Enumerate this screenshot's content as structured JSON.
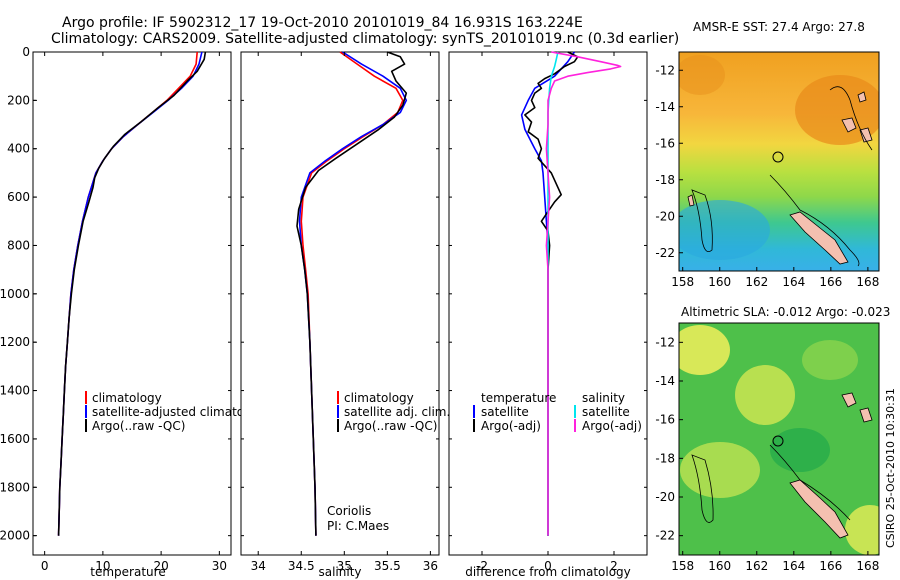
{
  "title_line1": "Argo profile: IF 5902312_17 19-Oct-2010 20101019_84 16.931S 163.224E",
  "title_line2": "Climatology: CARS2009. Satellite-adjusted climatology: synTS_20101019.nc (0.3d earlier)",
  "side_stamp": "CSIRO 25-Oct-2010 10:30:31",
  "colors": {
    "red": "#ff0000",
    "blue": "#0000ff",
    "black": "#000000",
    "cyan": "#00e5ee",
    "magenta": "#ff22dd"
  },
  "credits": {
    "line1": "Coriolis",
    "line2": "PI: C.Maes"
  },
  "chart_data": [
    {
      "type": "line",
      "name": "temperature-profile",
      "xlabel": "temperature",
      "ylabel": "",
      "xlim": [
        -2,
        32
      ],
      "ylim": [
        2080,
        0
      ],
      "xticks": [
        0,
        10,
        20,
        30
      ],
      "yticks": [
        0,
        200,
        400,
        600,
        800,
        1000,
        1200,
        1400,
        1600,
        1800,
        2000
      ],
      "legend_entries": [
        "climatology",
        "satellite-adjusted climatology",
        "Argo(..raw -QC)"
      ],
      "series": [
        {
          "name": "climatology",
          "color": "red",
          "points": [
            [
              26.2,
              0
            ],
            [
              26.0,
              50
            ],
            [
              25.0,
              100
            ],
            [
              23.0,
              150
            ],
            [
              21.0,
              200
            ],
            [
              18.5,
              250
            ],
            [
              16.0,
              300
            ],
            [
              13.5,
              350
            ],
            [
              11.5,
              400
            ],
            [
              10.0,
              450
            ],
            [
              8.8,
              500
            ],
            [
              7.5,
              600
            ],
            [
              6.5,
              700
            ],
            [
              5.7,
              800
            ],
            [
              5.0,
              900
            ],
            [
              4.5,
              1000
            ],
            [
              4.2,
              1100
            ],
            [
              3.9,
              1200
            ],
            [
              3.6,
              1300
            ],
            [
              3.4,
              1400
            ],
            [
              3.2,
              1500
            ],
            [
              3.0,
              1600
            ],
            [
              2.8,
              1700
            ],
            [
              2.6,
              1800
            ],
            [
              2.5,
              1900
            ],
            [
              2.4,
              2000
            ]
          ]
        },
        {
          "name": "satellite-adjusted climatology",
          "color": "blue",
          "points": [
            [
              27.0,
              0
            ],
            [
              26.5,
              50
            ],
            [
              25.5,
              100
            ],
            [
              23.5,
              150
            ],
            [
              21.2,
              200
            ],
            [
              18.6,
              250
            ],
            [
              16.0,
              300
            ],
            [
              13.5,
              350
            ],
            [
              11.5,
              400
            ],
            [
              10.0,
              450
            ],
            [
              8.8,
              500
            ],
            [
              7.5,
              600
            ],
            [
              6.5,
              700
            ],
            [
              5.7,
              800
            ],
            [
              5.0,
              900
            ],
            [
              4.5,
              1000
            ],
            [
              4.2,
              1100
            ],
            [
              3.9,
              1200
            ],
            [
              3.6,
              1300
            ],
            [
              3.4,
              1400
            ],
            [
              3.2,
              1500
            ],
            [
              3.0,
              1600
            ],
            [
              2.8,
              1700
            ],
            [
              2.6,
              1800
            ],
            [
              2.5,
              1900
            ],
            [
              2.4,
              2000
            ]
          ]
        },
        {
          "name": "Argo(..raw -QC)",
          "color": "black",
          "points": [
            [
              27.6,
              0
            ],
            [
              27.4,
              30
            ],
            [
              26.2,
              80
            ],
            [
              24.5,
              120
            ],
            [
              22.2,
              180
            ],
            [
              19.5,
              230
            ],
            [
              16.5,
              290
            ],
            [
              13.8,
              340
            ],
            [
              11.8,
              390
            ],
            [
              10.3,
              440
            ],
            [
              9.3,
              480
            ],
            [
              8.6,
              520
            ],
            [
              8.3,
              560
            ],
            [
              7.6,
              620
            ],
            [
              6.6,
              700
            ],
            [
              5.8,
              800
            ],
            [
              5.1,
              900
            ],
            [
              4.6,
              1000
            ],
            [
              4.2,
              1100
            ],
            [
              3.9,
              1200
            ],
            [
              3.6,
              1300
            ],
            [
              3.4,
              1400
            ],
            [
              3.2,
              1500
            ],
            [
              3.0,
              1600
            ],
            [
              2.8,
              1700
            ],
            [
              2.6,
              1800
            ],
            [
              2.5,
              1900
            ],
            [
              2.4,
              2000
            ]
          ]
        }
      ]
    },
    {
      "type": "line",
      "name": "salinity-profile",
      "xlabel": "salinity",
      "ylabel": "",
      "xlim": [
        33.8,
        36.1
      ],
      "ylim": [
        2080,
        0
      ],
      "xticks": [
        34,
        34.5,
        35,
        35.5,
        36
      ],
      "xtick_labels": [
        "34",
        "34.5",
        "35",
        "35.5",
        "36"
      ],
      "legend_entries": [
        "climatology",
        "satellite adj. clim.",
        "Argo(..raw -QC)"
      ],
      "series": [
        {
          "name": "climatology",
          "color": "red",
          "points": [
            [
              34.95,
              0
            ],
            [
              35.15,
              50
            ],
            [
              35.35,
              100
            ],
            [
              35.6,
              150
            ],
            [
              35.68,
              200
            ],
            [
              35.62,
              250
            ],
            [
              35.45,
              300
            ],
            [
              35.22,
              350
            ],
            [
              35.0,
              400
            ],
            [
              34.8,
              450
            ],
            [
              34.62,
              500
            ],
            [
              34.52,
              600
            ],
            [
              34.5,
              700
            ],
            [
              34.52,
              800
            ],
            [
              34.55,
              900
            ],
            [
              34.58,
              1000
            ],
            [
              34.6,
              1200
            ],
            [
              34.62,
              1400
            ],
            [
              34.64,
              1600
            ],
            [
              34.66,
              1800
            ],
            [
              34.67,
              2000
            ]
          ]
        },
        {
          "name": "satellite adj. clim.",
          "color": "blue",
          "points": [
            [
              34.98,
              0
            ],
            [
              35.2,
              50
            ],
            [
              35.45,
              100
            ],
            [
              35.65,
              150
            ],
            [
              35.72,
              200
            ],
            [
              35.65,
              250
            ],
            [
              35.45,
              300
            ],
            [
              35.2,
              350
            ],
            [
              34.98,
              400
            ],
            [
              34.78,
              450
            ],
            [
              34.6,
              500
            ],
            [
              34.5,
              600
            ],
            [
              34.48,
              700
            ],
            [
              34.5,
              800
            ],
            [
              34.54,
              900
            ],
            [
              34.57,
              1000
            ],
            [
              34.6,
              1200
            ],
            [
              34.62,
              1400
            ],
            [
              34.64,
              1600
            ],
            [
              34.66,
              1800
            ],
            [
              34.67,
              2000
            ]
          ]
        },
        {
          "name": "Argo(..raw -QC)",
          "color": "black",
          "points": [
            [
              35.5,
              0
            ],
            [
              35.65,
              20
            ],
            [
              35.7,
              50
            ],
            [
              35.55,
              80
            ],
            [
              35.6,
              120
            ],
            [
              35.72,
              170
            ],
            [
              35.68,
              220
            ],
            [
              35.58,
              270
            ],
            [
              35.4,
              320
            ],
            [
              35.15,
              380
            ],
            [
              34.9,
              440
            ],
            [
              34.7,
              490
            ],
            [
              34.55,
              560
            ],
            [
              34.47,
              650
            ],
            [
              34.45,
              720
            ],
            [
              34.5,
              800
            ],
            [
              34.54,
              900
            ],
            [
              34.57,
              1000
            ],
            [
              34.6,
              1200
            ],
            [
              34.62,
              1400
            ],
            [
              34.64,
              1600
            ],
            [
              34.66,
              1800
            ],
            [
              34.67,
              2000
            ]
          ]
        }
      ]
    },
    {
      "type": "line",
      "name": "difference-profile",
      "xlabel": "difference from climatology",
      "ylabel": "",
      "xlim": [
        -3,
        3
      ],
      "ylim": [
        2080,
        0
      ],
      "xticks": [
        -2,
        0,
        2
      ],
      "legend_entries": [
        "temperature",
        "satellite",
        "Argo(-adj)",
        "salinity",
        "satellite",
        "Argo(-adj)"
      ],
      "series": [
        {
          "name": "temperature satellite",
          "color": "blue",
          "points": [
            [
              0.8,
              0
            ],
            [
              0.6,
              40
            ],
            [
              0.2,
              100
            ],
            [
              -0.4,
              150
            ],
            [
              -0.6,
              200
            ],
            [
              -0.8,
              260
            ],
            [
              -0.7,
              320
            ],
            [
              -0.4,
              400
            ],
            [
              -0.2,
              450
            ],
            [
              -0.15,
              500
            ],
            [
              -0.1,
              600
            ],
            [
              -0.05,
              700
            ],
            [
              0,
              800
            ],
            [
              0,
              1000
            ],
            [
              0,
              2000
            ]
          ]
        },
        {
          "name": "temperature Argo(-adj)",
          "color": "black",
          "points": [
            [
              0.6,
              0
            ],
            [
              0.9,
              20
            ],
            [
              0.8,
              40
            ],
            [
              0.5,
              60
            ],
            [
              0.2,
              90
            ],
            [
              -0.1,
              110
            ],
            [
              -0.3,
              130
            ],
            [
              -0.2,
              150
            ],
            [
              -0.4,
              170
            ],
            [
              -0.5,
              200
            ],
            [
              -0.4,
              230
            ],
            [
              -0.7,
              260
            ],
            [
              -0.5,
              290
            ],
            [
              -0.6,
              330
            ],
            [
              -0.3,
              360
            ],
            [
              -0.2,
              400
            ],
            [
              -0.3,
              440
            ],
            [
              -0.1,
              470
            ],
            [
              0.1,
              500
            ],
            [
              0.2,
              530
            ],
            [
              0.3,
              560
            ],
            [
              0.4,
              590
            ],
            [
              0.2,
              620
            ],
            [
              0,
              660
            ],
            [
              -0.2,
              700
            ],
            [
              0,
              740
            ],
            [
              0.05,
              800
            ],
            [
              0,
              900
            ],
            [
              0,
              1000
            ],
            [
              0,
              1300
            ],
            [
              0,
              1600
            ],
            [
              0,
              2000
            ]
          ]
        },
        {
          "name": "salinity satellite",
          "color": "cyan",
          "points": [
            [
              0.3,
              0
            ],
            [
              0.25,
              30
            ],
            [
              0.2,
              60
            ],
            [
              0.1,
              100
            ],
            [
              0.05,
              150
            ],
            [
              0,
              250
            ],
            [
              0,
              400
            ],
            [
              0,
              600
            ],
            [
              0,
              800
            ],
            [
              0,
              1000
            ],
            [
              0,
              1500
            ],
            [
              0,
              2000
            ]
          ]
        },
        {
          "name": "salinity Argo(-adj)",
          "color": "magenta",
          "points": [
            [
              0.1,
              0
            ],
            [
              0.9,
              20
            ],
            [
              1.6,
              40
            ],
            [
              2.1,
              55
            ],
            [
              2.2,
              60
            ],
            [
              1.9,
              70
            ],
            [
              1.2,
              85
            ],
            [
              0.6,
              100
            ],
            [
              0.2,
              120
            ],
            [
              0.1,
              150
            ],
            [
              0,
              200
            ],
            [
              0,
              300
            ],
            [
              -0.05,
              400
            ],
            [
              0,
              500
            ],
            [
              0.05,
              600
            ],
            [
              0,
              700
            ],
            [
              -0.05,
              800
            ],
            [
              0,
              900
            ],
            [
              0,
              1000
            ],
            [
              0,
              1500
            ],
            [
              0,
              2000
            ]
          ]
        }
      ]
    },
    {
      "type": "heatmap",
      "name": "sst-map",
      "title": "AMSR-E SST: 27.4 Argo: 27.8",
      "xlim": [
        157.8,
        168.6
      ],
      "ylim": [
        -23,
        -11
      ],
      "xticks": [
        158,
        160,
        162,
        164,
        166,
        168
      ],
      "yticks": [
        -12,
        -14,
        -16,
        -18,
        -20,
        -22
      ],
      "argo_position": [
        163.224,
        -16.931
      ]
    },
    {
      "type": "heatmap",
      "name": "sla-map",
      "title": "Altimetric SLA: -0.012 Argo: -0.023",
      "xlim": [
        157.8,
        168.6
      ],
      "ylim": [
        -23,
        -11
      ],
      "xticks": [
        158,
        160,
        162,
        164,
        166,
        168
      ],
      "yticks": [
        -12,
        -14,
        -16,
        -18,
        -20,
        -22
      ],
      "argo_position": [
        163.224,
        -16.931
      ]
    }
  ]
}
